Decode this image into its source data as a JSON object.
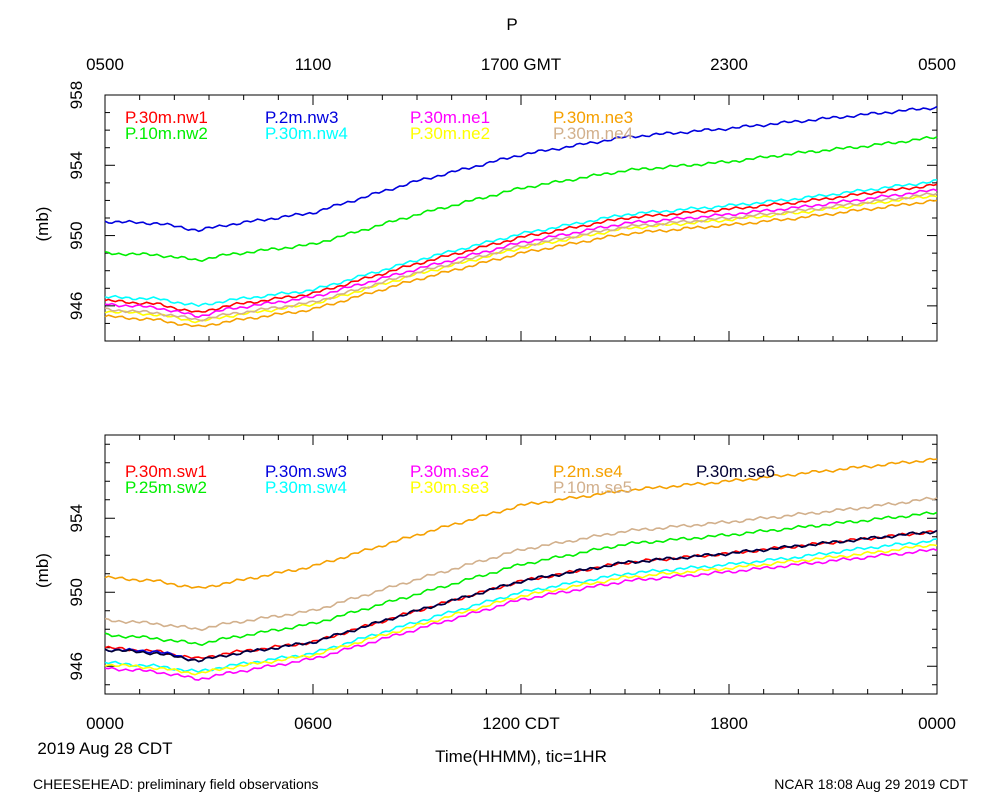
{
  "chart_data": [
    {
      "type": "line",
      "title": "P",
      "ylabel": "(mb)",
      "ylim": [
        944,
        958
      ],
      "yticks": [
        946,
        950,
        954,
        958
      ],
      "x_hours": [
        0,
        1.5,
        2.7,
        3.5,
        6,
        9,
        12,
        15,
        18,
        20,
        22,
        24
      ],
      "top_axis_labels": [
        "0500",
        "1100",
        "1700 GMT",
        "2300",
        "0500"
      ],
      "series": [
        {
          "name": "P.30m.nw1",
          "color": "#ff0000",
          "values": [
            946.3,
            946.1,
            945.6,
            946.0,
            946.7,
            948.4,
            949.9,
            951.0,
            951.5,
            951.9,
            952.4,
            952.9
          ]
        },
        {
          "name": "P.10m.nw2",
          "color": "#00ee00",
          "values": [
            949.0,
            948.9,
            948.6,
            948.9,
            949.5,
            951.2,
            952.7,
            953.7,
            954.2,
            954.7,
            955.1,
            955.6
          ]
        },
        {
          "name": "P.2m.nw3",
          "color": "#0000dd",
          "values": [
            950.8,
            950.7,
            950.3,
            950.6,
            951.3,
            953.1,
            954.6,
            955.6,
            956.1,
            956.5,
            956.9,
            957.3
          ]
        },
        {
          "name": "P.30m.nw4",
          "color": "#00ffff",
          "values": [
            946.5,
            946.4,
            946.0,
            946.3,
            946.9,
            948.6,
            950.1,
            951.2,
            951.7,
            952.1,
            952.6,
            953.1
          ]
        },
        {
          "name": "P.30m.ne1",
          "color": "#ff00ff",
          "values": [
            946.1,
            945.9,
            945.4,
            945.8,
            946.5,
            948.1,
            949.6,
            950.7,
            951.2,
            951.6,
            952.1,
            952.6
          ]
        },
        {
          "name": "P.30m.ne2",
          "color": "#ffff00",
          "values": [
            945.7,
            945.5,
            945.1,
            945.4,
            946.1,
            947.8,
            949.3,
            950.4,
            950.9,
            951.3,
            951.8,
            952.3
          ]
        },
        {
          "name": "P.30m.ne3",
          "color": "#f5a000",
          "values": [
            945.4,
            945.2,
            944.8,
            945.1,
            945.8,
            947.5,
            949.0,
            950.1,
            950.6,
            951.0,
            951.5,
            952.0
          ]
        },
        {
          "name": "P.30m.ne4",
          "color": "#d2b08c",
          "values": [
            945.8,
            945.6,
            945.2,
            945.5,
            946.2,
            947.9,
            949.4,
            950.5,
            951.0,
            951.4,
            951.9,
            952.4
          ]
        }
      ]
    },
    {
      "type": "line",
      "ylabel": "(mb)",
      "ylim": [
        944.5,
        958.5
      ],
      "yticks": [
        946,
        950,
        954
      ],
      "x_hours": [
        0,
        1.5,
        2.7,
        3.5,
        6,
        9,
        12,
        15,
        18,
        20,
        22,
        24
      ],
      "bottom_axis_labels": [
        "0000",
        "0600",
        "1200 CDT",
        "1800",
        "0000"
      ],
      "xlabel": "Time(HHMM), tic=1HR",
      "date_label": "2019 Aug 28 CDT",
      "series": [
        {
          "name": "P.30m.sw1",
          "color": "#ff0000",
          "values": [
            947.0,
            946.8,
            946.4,
            946.7,
            947.3,
            949.0,
            950.6,
            951.6,
            952.1,
            952.5,
            952.9,
            953.3
          ]
        },
        {
          "name": "P.25m.sw2",
          "color": "#00ee00",
          "values": [
            947.7,
            947.5,
            947.2,
            947.5,
            948.3,
            949.9,
            951.5,
            952.6,
            953.1,
            953.5,
            953.9,
            954.3
          ]
        },
        {
          "name": "P.30m.sw3",
          "color": "#0000dd",
          "values": [
            946.9,
            946.8,
            946.3,
            946.6,
            947.3,
            949.0,
            950.6,
            951.6,
            952.1,
            952.5,
            952.9,
            953.3
          ]
        },
        {
          "name": "P.30m.sw4",
          "color": "#00ffff",
          "values": [
            946.2,
            946.0,
            945.7,
            946.0,
            946.7,
            948.4,
            950.0,
            951.0,
            951.5,
            951.9,
            952.4,
            952.8
          ]
        },
        {
          "name": "P.30m.se2",
          "color": "#ff00ff",
          "values": [
            945.9,
            945.7,
            945.3,
            945.6,
            946.4,
            948.0,
            949.6,
            950.6,
            951.1,
            951.5,
            951.9,
            952.3
          ]
        },
        {
          "name": "P.30m.se3",
          "color": "#ffff00",
          "values": [
            946.1,
            945.9,
            945.6,
            945.9,
            946.6,
            948.2,
            949.8,
            950.8,
            951.3,
            951.7,
            952.1,
            952.6
          ]
        },
        {
          "name": "P.2m.se4",
          "color": "#f5a000",
          "values": [
            950.8,
            950.6,
            950.2,
            950.5,
            951.4,
            953.1,
            954.7,
            955.5,
            956.0,
            956.4,
            956.8,
            957.2
          ]
        },
        {
          "name": "P.10m.se5",
          "color": "#d2b08c",
          "values": [
            948.5,
            948.3,
            948.0,
            948.3,
            949.0,
            950.7,
            952.3,
            953.3,
            953.8,
            954.2,
            954.6,
            955.1
          ]
        },
        {
          "name": "P.30m.se6",
          "color": "#000033",
          "values": [
            946.9,
            946.7,
            946.3,
            946.6,
            947.3,
            949.0,
            950.6,
            951.6,
            952.1,
            952.5,
            952.9,
            953.3
          ]
        }
      ]
    }
  ],
  "footer": {
    "left": "CHEESEHEAD: preliminary field observations",
    "right": "NCAR 18:08 Aug 29 2019 CDT"
  }
}
